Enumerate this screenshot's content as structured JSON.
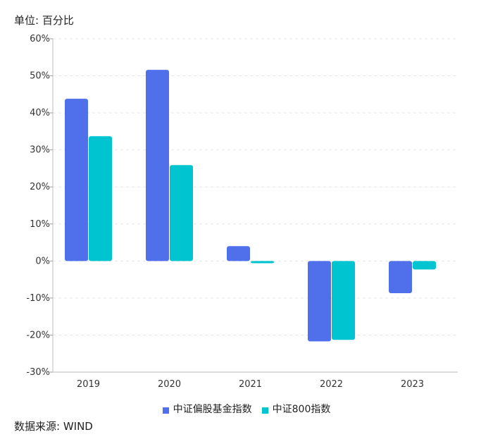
{
  "unit_label": "单位: 百分比",
  "source_label": "数据来源: WIND",
  "chart_data": {
    "type": "bar",
    "title": "",
    "xlabel": "",
    "ylabel": "",
    "categories": [
      "2019",
      "2020",
      "2021",
      "2022",
      "2023"
    ],
    "series": [
      {
        "name": "中证偏股基金指数",
        "color": "#4F6FEB",
        "values": [
          43.8,
          51.6,
          4.0,
          -21.7,
          -8.7
        ]
      },
      {
        "name": "中证800指数",
        "color": "#00C5D1",
        "values": [
          33.7,
          25.9,
          -0.6,
          -21.3,
          -2.3
        ]
      }
    ],
    "ylim": [
      -30,
      60
    ],
    "yticks": [
      "60%",
      "50%",
      "40%",
      "30%",
      "20%",
      "10%",
      "0%",
      "-10%",
      "-20%",
      "-30%"
    ],
    "grid": true,
    "legend": "bottom"
  }
}
